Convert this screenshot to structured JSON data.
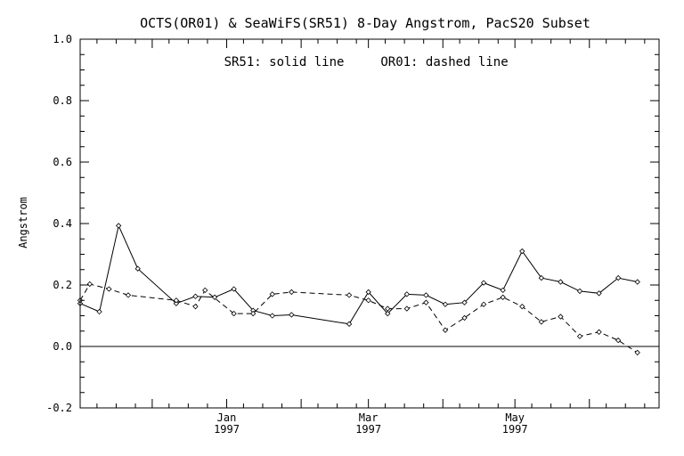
{
  "chart_data": {
    "type": "line",
    "title": "OCTS(OR01) & SeaWiFS(SR51) 8-Day Angstrom, PacS20 Subset",
    "annotation_solid": "SR51: solid line",
    "annotation_dashed": "OR01: dashed line",
    "xlabel": "",
    "ylabel": "Angstrom",
    "ylim": [
      -0.2,
      1.0
    ],
    "xlim": [
      "1996-11-01",
      "1997-06-30"
    ],
    "y_ticks": [
      "-0.2",
      "0.0",
      "0.2",
      "0.4",
      "0.6",
      "0.8",
      "1.0"
    ],
    "x_ticks": [
      {
        "date": "1997-01-01",
        "label": "Jan",
        "year": "1997"
      },
      {
        "date": "1997-03-01",
        "label": "Mar",
        "year": "1997"
      },
      {
        "date": "1997-05-01",
        "label": "May",
        "year": "1997"
      }
    ],
    "reference_line_y": 0.0,
    "series": [
      {
        "name": "SR51",
        "style": "solid",
        "points": [
          {
            "x": "1996-11-01",
            "y": 0.14
          },
          {
            "x": "1996-11-09",
            "y": 0.113
          },
          {
            "x": "1996-11-17",
            "y": 0.393
          },
          {
            "x": "1996-11-25",
            "y": 0.253
          },
          {
            "x": "1996-12-11",
            "y": 0.14
          },
          {
            "x": "1996-12-19",
            "y": 0.163
          },
          {
            "x": "1996-12-27",
            "y": 0.16
          },
          {
            "x": "1997-01-04",
            "y": 0.187
          },
          {
            "x": "1997-01-12",
            "y": 0.117
          },
          {
            "x": "1997-01-20",
            "y": 0.1
          },
          {
            "x": "1997-01-28",
            "y": 0.103
          },
          {
            "x": "1997-02-21",
            "y": 0.073
          },
          {
            "x": "1997-03-01",
            "y": 0.177
          },
          {
            "x": "1997-03-09",
            "y": 0.107
          },
          {
            "x": "1997-03-17",
            "y": 0.17
          },
          {
            "x": "1997-03-25",
            "y": 0.167
          },
          {
            "x": "1997-04-02",
            "y": 0.137
          },
          {
            "x": "1997-04-10",
            "y": 0.143
          },
          {
            "x": "1997-04-18",
            "y": 0.207
          },
          {
            "x": "1997-04-26",
            "y": 0.183
          },
          {
            "x": "1997-05-04",
            "y": 0.31
          },
          {
            "x": "1997-05-12",
            "y": 0.223
          },
          {
            "x": "1997-05-20",
            "y": 0.21
          },
          {
            "x": "1997-05-28",
            "y": 0.18
          },
          {
            "x": "1997-06-05",
            "y": 0.173
          },
          {
            "x": "1997-06-13",
            "y": 0.223
          },
          {
            "x": "1997-06-21",
            "y": 0.21
          }
        ]
      },
      {
        "name": "OR01",
        "style": "dashed",
        "points": [
          {
            "x": "1996-11-01",
            "y": 0.15
          },
          {
            "x": "1996-11-05",
            "y": 0.203
          },
          {
            "x": "1996-11-13",
            "y": 0.187
          },
          {
            "x": "1996-11-21",
            "y": 0.167
          },
          {
            "x": "1996-12-11",
            "y": 0.15
          },
          {
            "x": "1996-12-19",
            "y": 0.13
          },
          {
            "x": "1996-12-23",
            "y": 0.183
          },
          {
            "x": "1997-01-04",
            "y": 0.107
          },
          {
            "x": "1997-01-12",
            "y": 0.107
          },
          {
            "x": "1997-01-20",
            "y": 0.17
          },
          {
            "x": "1997-01-28",
            "y": 0.177
          },
          {
            "x": "1997-02-21",
            "y": 0.167
          },
          {
            "x": "1997-03-01",
            "y": 0.15
          },
          {
            "x": "1997-03-09",
            "y": 0.123
          },
          {
            "x": "1997-03-17",
            "y": 0.123
          },
          {
            "x": "1997-03-25",
            "y": 0.143
          },
          {
            "x": "1997-04-02",
            "y": 0.053
          },
          {
            "x": "1997-04-10",
            "y": 0.093
          },
          {
            "x": "1997-04-18",
            "y": 0.137
          },
          {
            "x": "1997-04-26",
            "y": 0.16
          },
          {
            "x": "1997-05-04",
            "y": 0.13
          },
          {
            "x": "1997-05-12",
            "y": 0.08
          },
          {
            "x": "1997-05-20",
            "y": 0.097
          },
          {
            "x": "1997-05-28",
            "y": 0.033
          },
          {
            "x": "1997-06-05",
            "y": 0.047
          },
          {
            "x": "1997-06-13",
            "y": 0.02
          },
          {
            "x": "1997-06-21",
            "y": -0.02
          }
        ]
      }
    ]
  }
}
